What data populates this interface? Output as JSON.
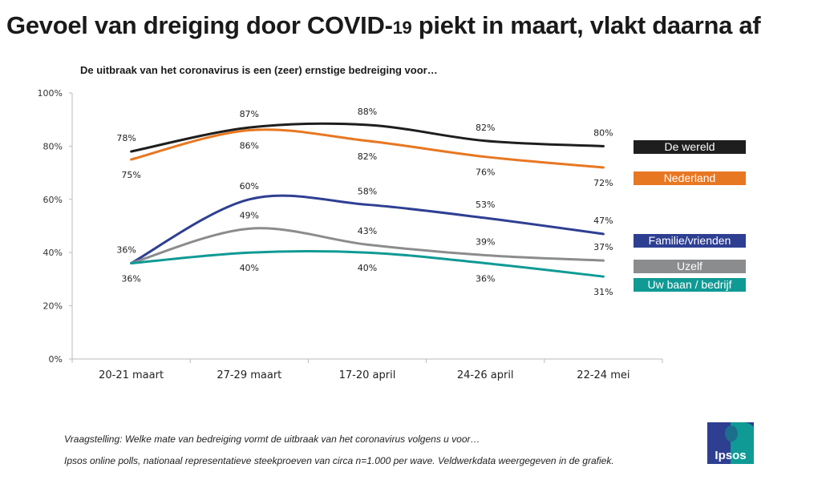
{
  "title_main": "Gevoel van dreiging door COVID-",
  "title_small": "19",
  "title_rest": " piekt in maart, vlakt daarna af",
  "subtitle": "De uitbraak van het coronavirus is een (zeer) ernstige bedreiging voor…",
  "footnotes": [
    "Vraagstelling: Welke mate van bedreiging vormt de uitbraak van het coronavirus volgens u voor…",
    "Ipsos online polls, nationaal representatieve steekproeven van circa n=1.000 per wave. Veldwerkdata weergegeven  in de grafiek."
  ],
  "logo_text": "Ipsos",
  "chart_data": {
    "type": "line",
    "title": "De uitbraak van het coronavirus is een (zeer) ernstige bedreiging voor…",
    "categories": [
      "20-21 maart",
      "27-29 maart",
      "17-20 april",
      "24-26 april",
      "22-24 mei"
    ],
    "ylim": [
      0,
      100
    ],
    "yticks": [
      "0%",
      "20%",
      "40%",
      "60%",
      "80%",
      "100%"
    ],
    "grid": false,
    "legend": "right",
    "smooth": true,
    "series": [
      {
        "name": "De wereld",
        "color": "#1e1e1e",
        "values": [
          78,
          87,
          88,
          82,
          80
        ],
        "labels": [
          "78%",
          "87%",
          "88%",
          "82%",
          "80%"
        ],
        "label_pos": [
          "above",
          "above",
          "above",
          "above",
          "above"
        ]
      },
      {
        "name": "Nederland",
        "color": "#e87722",
        "values": [
          75,
          86,
          82,
          76,
          72
        ],
        "labels": [
          "75%",
          "86%",
          "82%",
          "76%",
          "72%"
        ],
        "label_pos": [
          "below",
          "below",
          "below",
          "below",
          "below"
        ]
      },
      {
        "name": "Familie/vrienden",
        "color": "#2e3f92",
        "values": [
          36,
          60,
          58,
          53,
          47
        ],
        "labels": [
          "36%",
          "60%",
          "58%",
          "53%",
          "47%"
        ],
        "label_pos": [
          "above",
          "above",
          "above",
          "above",
          "above"
        ]
      },
      {
        "name": "Uzelf",
        "color": "#8a8c8e",
        "values": [
          36,
          49,
          43,
          39,
          37
        ],
        "labels": [
          "",
          "49%",
          "43%",
          "39%",
          "37%"
        ],
        "label_pos": [
          "",
          "above",
          "above",
          "above",
          "above"
        ]
      },
      {
        "name": "Uw baan / bedrijf",
        "color": "#0f9a95",
        "values": [
          36,
          40,
          40,
          36,
          31
        ],
        "labels": [
          "36%",
          "40%",
          "40%",
          "36%",
          "31%"
        ],
        "label_pos": [
          "below",
          "below",
          "below",
          "below",
          "below"
        ]
      }
    ]
  }
}
